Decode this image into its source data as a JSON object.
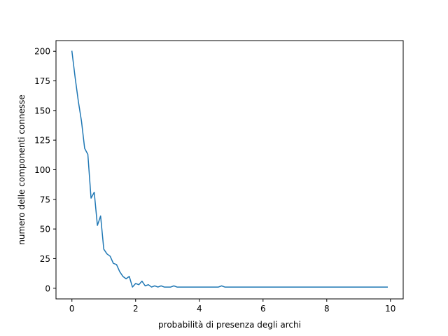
{
  "chart_data": {
    "type": "line",
    "title": "",
    "xlabel": "probabilità di presenza degli archi",
    "ylabel": "numero delle componenti connesse",
    "xlim": [
      -0.5,
      10.4
    ],
    "ylim": [
      -9,
      209
    ],
    "xticks": [
      0,
      2,
      4,
      6,
      8,
      10
    ],
    "xtick_labels": [
      "0",
      "2",
      "4",
      "6",
      "8",
      "10"
    ],
    "yticks": [
      0,
      25,
      50,
      75,
      100,
      125,
      150,
      175,
      200
    ],
    "ytick_labels": [
      "0",
      "25",
      "50",
      "75",
      "100",
      "125",
      "150",
      "175",
      "200"
    ],
    "grid": false,
    "legend": "none",
    "series": [
      {
        "color": "#1f77b4",
        "x": [
          0.0,
          0.1,
          0.2,
          0.3,
          0.4,
          0.5,
          0.6,
          0.7,
          0.8,
          0.9,
          1.0,
          1.1,
          1.2,
          1.3,
          1.4,
          1.5,
          1.6,
          1.7,
          1.8,
          1.9,
          2.0,
          2.1,
          2.2,
          2.3,
          2.4,
          2.5,
          2.6,
          2.7,
          2.8,
          2.9,
          3.0,
          3.1,
          3.2,
          3.3,
          3.4,
          3.5,
          3.6,
          3.7,
          3.8,
          3.9,
          4.0,
          4.1,
          4.2,
          4.3,
          4.4,
          4.5,
          4.6,
          4.7,
          4.8,
          4.9,
          5.0,
          5.1,
          5.2,
          5.3,
          5.4,
          5.5,
          5.6,
          5.7,
          5.8,
          5.9,
          6.0,
          6.1,
          6.2,
          6.3,
          6.4,
          6.5,
          6.6,
          6.7,
          6.8,
          6.9,
          7.0,
          7.1,
          7.2,
          7.3,
          7.4,
          7.5,
          7.6,
          7.7,
          7.8,
          7.9,
          8.0,
          8.1,
          8.2,
          8.3,
          8.4,
          8.5,
          8.6,
          8.7,
          8.8,
          8.9,
          9.0,
          9.1,
          9.2,
          9.3,
          9.4,
          9.5,
          9.6,
          9.7,
          9.8,
          9.9
        ],
        "y": [
          200,
          178,
          158,
          141,
          118,
          113,
          76,
          81,
          53,
          61,
          33,
          29,
          27,
          21,
          20,
          14,
          10,
          8,
          10,
          1,
          4,
          3,
          6,
          2,
          3,
          1,
          2,
          1,
          2,
          1,
          1,
          1,
          2,
          1,
          1,
          1,
          1,
          1,
          1,
          1,
          1,
          1,
          1,
          1,
          1,
          1,
          1,
          2,
          1,
          1,
          1,
          1,
          1,
          1,
          1,
          1,
          1,
          1,
          1,
          1,
          1,
          1,
          1,
          1,
          1,
          1,
          1,
          1,
          1,
          1,
          1,
          1,
          1,
          1,
          1,
          1,
          1,
          1,
          1,
          1,
          1,
          1,
          1,
          1,
          1,
          1,
          1,
          1,
          1,
          1,
          1,
          1,
          1,
          1,
          1,
          1,
          1,
          1,
          1,
          1
        ]
      }
    ]
  }
}
